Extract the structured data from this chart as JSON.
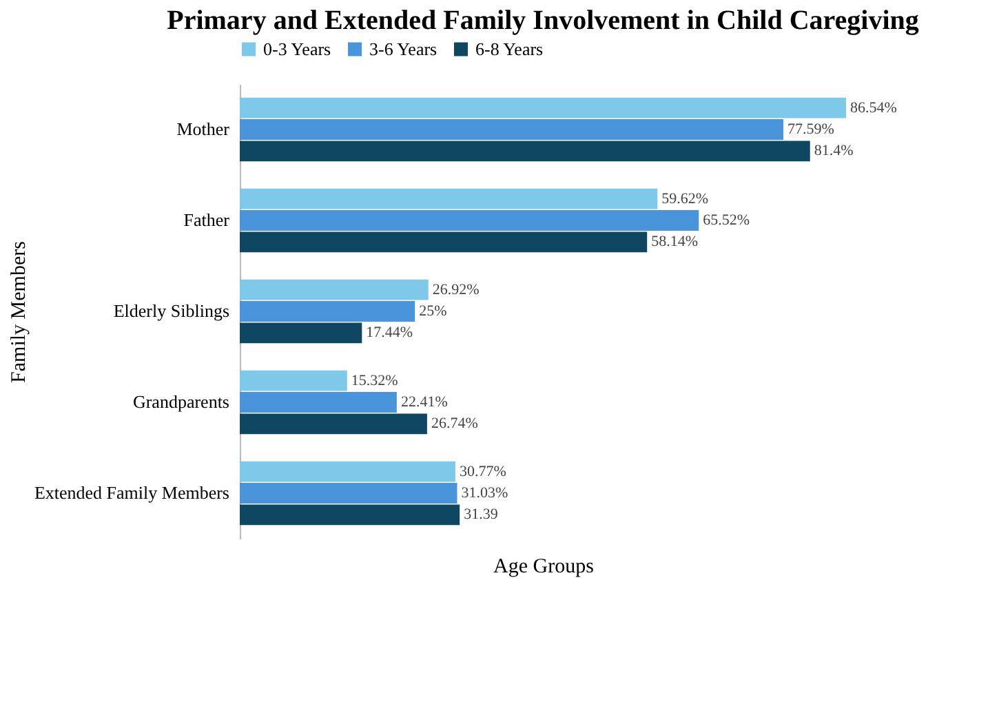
{
  "chart_data": {
    "type": "bar",
    "orientation": "horizontal",
    "title": "Primary and Extended Family Involvement in Child Caregiving",
    "xlabel": "Age Groups",
    "ylabel": "Family  Members",
    "categories": [
      "Mother",
      "Father",
      "Elderly Siblings",
      "Grandparents",
      "Extended Family Members"
    ],
    "series": [
      {
        "name": "0-3 Years",
        "color": "#7ec8ea",
        "values": [
          86.54,
          59.62,
          26.92,
          15.32,
          30.77
        ],
        "value_labels": [
          "86.54%",
          "59.62%",
          "26.92%",
          "15.32%",
          "30.77%"
        ]
      },
      {
        "name": "3-6 Years",
        "color": "#4a94dc",
        "values": [
          77.59,
          65.52,
          25,
          22.41,
          31.03
        ],
        "value_labels": [
          "77.59%",
          "65.52%",
          "25%",
          "22.41%",
          "31.03%"
        ]
      },
      {
        "name": "6-8 Years",
        "color": "#0f4661",
        "values": [
          81.4,
          58.14,
          17.44,
          26.74,
          31.39
        ],
        "value_labels": [
          "81.4%",
          "58.14%",
          "17.44%",
          "26.74%",
          "31.39"
        ]
      }
    ],
    "legend": "top",
    "tick_labels": "y",
    "grid": false
  }
}
